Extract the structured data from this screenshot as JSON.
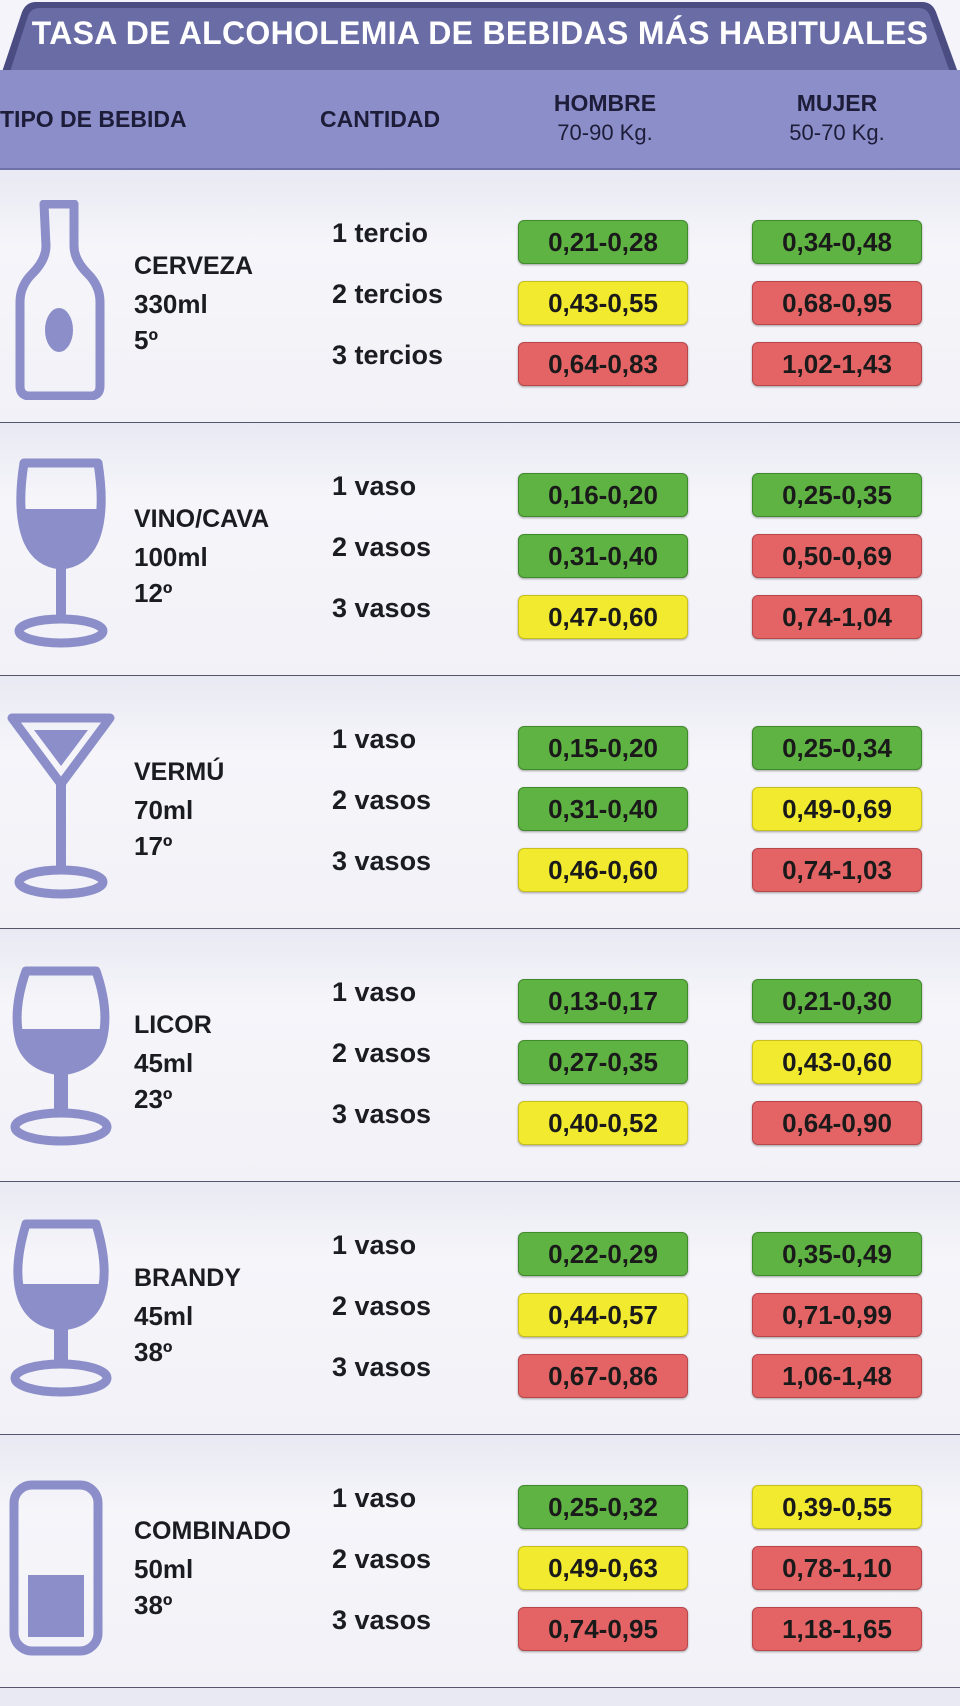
{
  "title": "TASA DE ALCOHOLEMIA DE BEBIDAS MÁS HABITUALES",
  "colors": {
    "header": "#8c8ec9",
    "icon": "#8c8ec9",
    "green": "#5fb342",
    "yellow": "#f2ea2e",
    "red": "#e46466"
  },
  "header": {
    "tipo": "TIPO DE BEBIDA",
    "cantidad": "CANTIDAD",
    "hombre": "HOMBRE",
    "hombre_peso": "70-90 Kg.",
    "mujer": "MUJER",
    "mujer_peso": "50-70 Kg."
  },
  "drinks": [
    {
      "icon": "beer-bottle-icon",
      "name": "CERVEZA",
      "volume": "330ml",
      "degrees": "5º",
      "rows": [
        {
          "qty": "1 tercio",
          "hombre": "0,21-0,28",
          "hombre_level": "green",
          "mujer": "0,34-0,48",
          "mujer_level": "green"
        },
        {
          "qty": "2 tercios",
          "hombre": "0,43-0,55",
          "hombre_level": "yellow",
          "mujer": "0,68-0,95",
          "mujer_level": "red"
        },
        {
          "qty": "3 tercios",
          "hombre": "0,64-0,83",
          "hombre_level": "red",
          "mujer": "1,02-1,43",
          "mujer_level": "red"
        }
      ]
    },
    {
      "icon": "wine-glass-icon",
      "name": "VINO/CAVA",
      "volume": "100ml",
      "degrees": "12º",
      "rows": [
        {
          "qty": "1 vaso",
          "hombre": "0,16-0,20",
          "hombre_level": "green",
          "mujer": "0,25-0,35",
          "mujer_level": "green"
        },
        {
          "qty": "2 vasos",
          "hombre": "0,31-0,40",
          "hombre_level": "green",
          "mujer": "0,50-0,69",
          "mujer_level": "red"
        },
        {
          "qty": "3 vasos",
          "hombre": "0,47-0,60",
          "hombre_level": "yellow",
          "mujer": "0,74-1,04",
          "mujer_level": "red"
        }
      ]
    },
    {
      "icon": "martini-glass-icon",
      "name": "VERMÚ",
      "volume": "70ml",
      "degrees": "17º",
      "rows": [
        {
          "qty": "1 vaso",
          "hombre": "0,15-0,20",
          "hombre_level": "green",
          "mujer": "0,25-0,34",
          "mujer_level": "green"
        },
        {
          "qty": "2 vasos",
          "hombre": "0,31-0,40",
          "hombre_level": "green",
          "mujer": "0,49-0,69",
          "mujer_level": "yellow"
        },
        {
          "qty": "3 vasos",
          "hombre": "0,46-0,60",
          "hombre_level": "yellow",
          "mujer": "0,74-1,03",
          "mujer_level": "red"
        }
      ]
    },
    {
      "icon": "liqueur-glass-icon",
      "name": "LICOR",
      "volume": "45ml",
      "degrees": "23º",
      "rows": [
        {
          "qty": "1 vaso",
          "hombre": "0,13-0,17",
          "hombre_level": "green",
          "mujer": "0,21-0,30",
          "mujer_level": "green"
        },
        {
          "qty": "2 vasos",
          "hombre": "0,27-0,35",
          "hombre_level": "green",
          "mujer": "0,43-0,60",
          "mujer_level": "yellow"
        },
        {
          "qty": "3 vasos",
          "hombre": "0,40-0,52",
          "hombre_level": "yellow",
          "mujer": "0,64-0,90",
          "mujer_level": "red"
        }
      ]
    },
    {
      "icon": "brandy-snifter-icon",
      "name": "BRANDY",
      "volume": "45ml",
      "degrees": "38º",
      "rows": [
        {
          "qty": "1 vaso",
          "hombre": "0,22-0,29",
          "hombre_level": "green",
          "mujer": "0,35-0,49",
          "mujer_level": "green"
        },
        {
          "qty": "2 vasos",
          "hombre": "0,44-0,57",
          "hombre_level": "yellow",
          "mujer": "0,71-0,99",
          "mujer_level": "red"
        },
        {
          "qty": "3 vasos",
          "hombre": "0,67-0,86",
          "hombre_level": "red",
          "mujer": "1,06-1,48",
          "mujer_level": "red"
        }
      ]
    },
    {
      "icon": "highball-glass-icon",
      "name": "COMBINADO",
      "volume": "50ml",
      "degrees": "38º",
      "rows": [
        {
          "qty": "1 vaso",
          "hombre": "0,25-0,32",
          "hombre_level": "green",
          "mujer": "0,39-0,55",
          "mujer_level": "yellow"
        },
        {
          "qty": "2 vasos",
          "hombre": "0,49-0,63",
          "hombre_level": "yellow",
          "mujer": "0,78-1,10",
          "mujer_level": "red"
        },
        {
          "qty": "3 vasos",
          "hombre": "0,74-0,95",
          "hombre_level": "red",
          "mujer": "1,18-1,65",
          "mujer_level": "red"
        }
      ]
    }
  ]
}
